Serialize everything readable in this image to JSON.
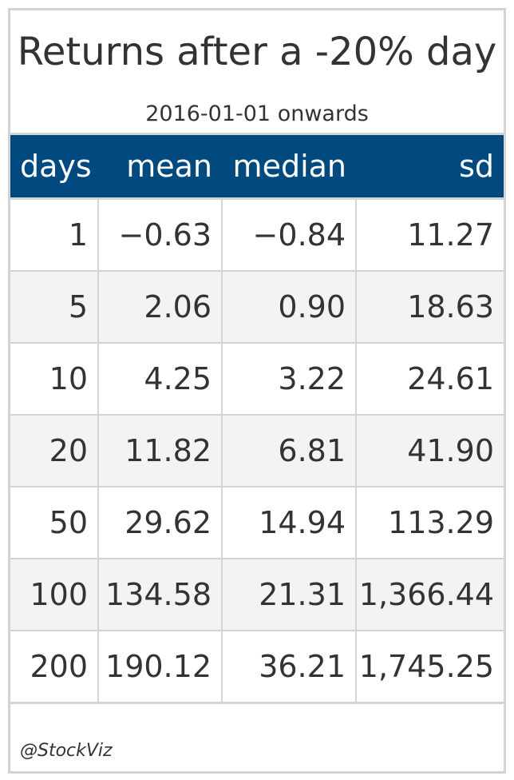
{
  "title": "Returns after a -20% day",
  "subtitle": "2016-01-01 onwards",
  "source_note": "@StockViz",
  "colors": {
    "header_bg": "#004a80",
    "header_text": "#ffffff",
    "stripe": "#f3f3f3",
    "border": "#d3d3d3"
  },
  "chart_data": {
    "type": "table",
    "title": "Returns after a -20% day",
    "subtitle": "2016-01-01 onwards",
    "columns": [
      "days",
      "mean",
      "median",
      "sd"
    ],
    "rows": [
      [
        "1",
        "−0.63",
        "−0.84",
        "11.27"
      ],
      [
        "5",
        "2.06",
        "0.90",
        "18.63"
      ],
      [
        "10",
        "4.25",
        "3.22",
        "24.61"
      ],
      [
        "20",
        "11.82",
        "6.81",
        "41.90"
      ],
      [
        "50",
        "29.62",
        "14.94",
        "113.29"
      ],
      [
        "100",
        "134.58",
        "21.31",
        "1,366.44"
      ],
      [
        "200",
        "190.12",
        "36.21",
        "1,745.25"
      ]
    ]
  }
}
